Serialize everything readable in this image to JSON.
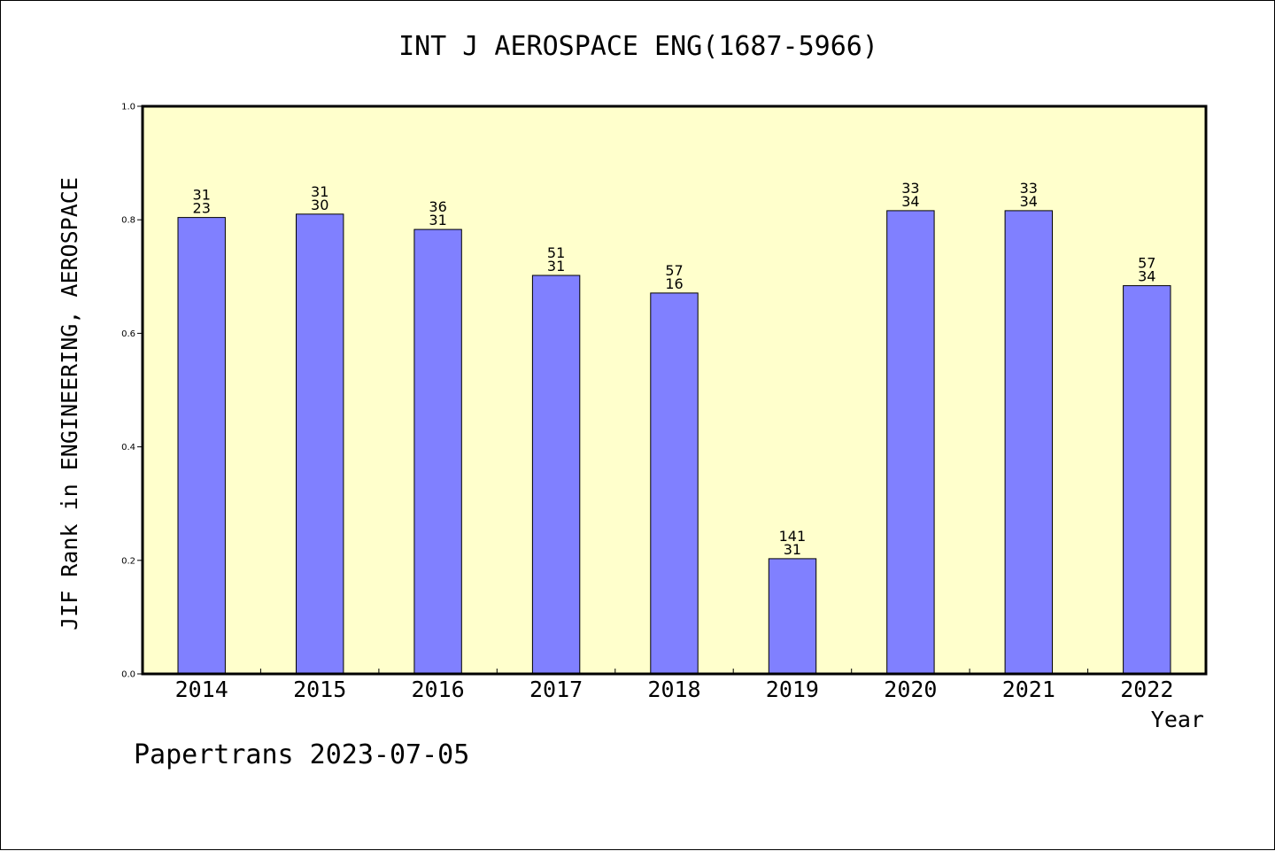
{
  "title": "INT J AEROSPACE ENG(1687-5966)",
  "footer": "Papertrans 2023-07-05",
  "chart_data": {
    "type": "bar",
    "title": "INT J AEROSPACE ENG(1687-5966)",
    "xlabel": "Year",
    "ylabel": "JIF Rank in ENGINEERING, AEROSPACE",
    "ylim": [
      0,
      1.0
    ],
    "yticks": [
      "0.0",
      "0.2",
      "0.4",
      "0.6",
      "0.8",
      "1.0"
    ],
    "categories": [
      "2014",
      "2015",
      "2016",
      "2017",
      "2018",
      "2019",
      "2020",
      "2021",
      "2022"
    ],
    "values": [
      0.804,
      0.81,
      0.783,
      0.702,
      0.671,
      0.203,
      0.816,
      0.816,
      0.684
    ],
    "labels": [
      [
        "31",
        "23"
      ],
      [
        "31",
        "30"
      ],
      [
        "36",
        "31"
      ],
      [
        "51",
        "31"
      ],
      [
        "57",
        "16"
      ],
      [
        "141",
        "31"
      ],
      [
        "33",
        "34"
      ],
      [
        "33",
        "34"
      ],
      [
        "57",
        "34"
      ]
    ],
    "colors": {
      "plot_bg": "#ffffcc",
      "bar": "#8080ff"
    },
    "grid": false
  }
}
